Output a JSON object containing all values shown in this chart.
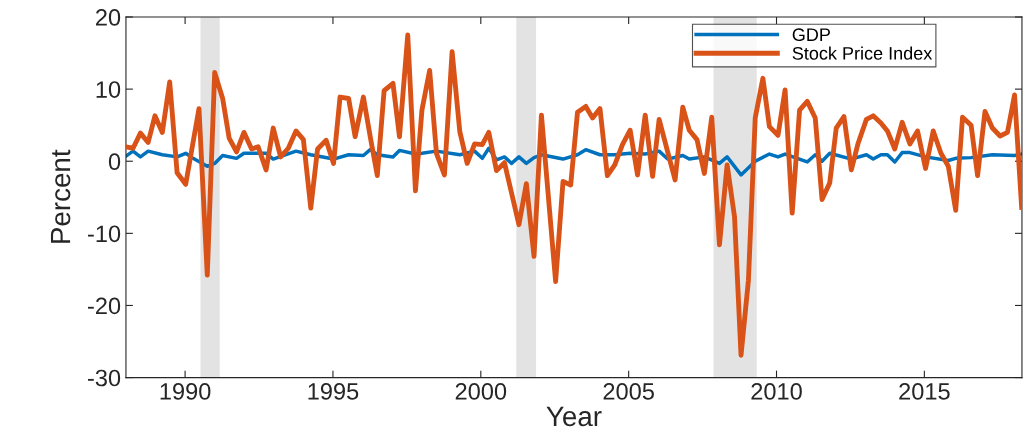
{
  "chart_data": {
    "type": "line",
    "xlabel": "Year",
    "ylabel": "Percent",
    "xlim": [
      1988,
      2018.3
    ],
    "xticks": [
      1990,
      1995,
      2000,
      2005,
      2010,
      2015
    ],
    "ylim": [
      -30,
      20
    ],
    "yticks": [
      -30,
      -20,
      -10,
      0,
      10,
      20
    ],
    "grid": false,
    "legend": "top right",
    "line_style": "solid",
    "marker": "none",
    "bands": [
      {
        "axis": "x",
        "from": 1990.52,
        "to": 1991.17,
        "color": "#e3e3e3"
      },
      {
        "axis": "x",
        "from": 2001.2,
        "to": 2001.87,
        "color": "#e3e3e3"
      },
      {
        "axis": "x",
        "from": 2007.87,
        "to": 2009.33,
        "color": "#e3e3e3"
      }
    ],
    "series": [
      {
        "name": "GDP",
        "color": "#0072bd",
        "x": [
          1988.0,
          1988.24,
          1988.49,
          1988.75,
          1989.23,
          1989.73,
          1990.02,
          1990.27,
          1990.75,
          1991.0,
          1991.27,
          1991.74,
          1991.99,
          1992.74,
          1992.98,
          1993.75,
          1994.25,
          1995.02,
          1995.53,
          1996.03,
          1996.26,
          1996.5,
          1997.03,
          1997.25,
          1997.79,
          1998.01,
          1998.5,
          1999.29,
          1999.79,
          2000.05,
          2000.27,
          2000.53,
          2000.8,
          2001.04,
          2001.29,
          2001.54,
          2001.8,
          2002.05,
          2002.78,
          2003.27,
          2003.55,
          2004.03,
          2004.53,
          2005.05,
          2005.56,
          2006.03,
          2006.32,
          2006.83,
          2007.05,
          2007.56,
          2008.07,
          2008.33,
          2008.8,
          2009.28,
          2009.76,
          2010.05,
          2010.29,
          2011.04,
          2011.31,
          2011.54,
          2011.8,
          2012.53,
          2013.04,
          2013.27,
          2013.53,
          2013.75,
          2014.0,
          2014.25,
          2014.51,
          2015.04,
          2015.81,
          2016.06,
          2016.58,
          2017.3,
          2018.05,
          2018.29
        ],
        "values": [
          0.7,
          1.4,
          0.6,
          1.4,
          0.9,
          0.6,
          1.1,
          0.4,
          -0.7,
          -0.3,
          0.8,
          0.4,
          1.1,
          1.1,
          0.3,
          1.4,
          0.9,
          0.3,
          0.9,
          0.8,
          1.6,
          0.9,
          0.6,
          1.5,
          1.0,
          1.1,
          1.4,
          0.9,
          1.4,
          0.4,
          1.8,
          0.2,
          0.6,
          -0.3,
          0.6,
          -0.3,
          0.5,
          0.9,
          0.3,
          0.9,
          1.6,
          0.9,
          0.9,
          1.1,
          1.0,
          1.4,
          0.3,
          0.8,
          0.3,
          0.6,
          -0.3,
          0.6,
          -1.9,
          0.0,
          1.0,
          0.6,
          1.0,
          -0.1,
          0.9,
          0.0,
          1.1,
          0.3,
          0.9,
          0.3,
          0.9,
          0.9,
          -0.1,
          1.2,
          1.2,
          0.6,
          0.1,
          0.4,
          0.5,
          0.9,
          0.8,
          1.0
        ]
      },
      {
        "name": "Stock Price Index",
        "color": "#d95319",
        "x": [
          1988.0,
          1988.24,
          1988.49,
          1988.75,
          1988.98,
          1989.23,
          1989.48,
          1989.73,
          1990.02,
          1990.47,
          1990.75,
          1991.0,
          1991.27,
          1991.49,
          1991.74,
          1991.99,
          1992.25,
          1992.47,
          1992.74,
          1992.98,
          1993.23,
          1993.49,
          1993.75,
          1994.0,
          1994.25,
          1994.48,
          1994.77,
          1995.02,
          1995.24,
          1995.53,
          1995.75,
          1996.03,
          1996.26,
          1996.5,
          1996.73,
          1997.03,
          1997.25,
          1997.53,
          1997.79,
          1998.01,
          1998.27,
          1998.5,
          1998.77,
          1999.03,
          1999.29,
          1999.54,
          1999.79,
          2000.05,
          2000.27,
          2000.53,
          2000.8,
          2001.29,
          2001.54,
          2001.8,
          2002.05,
          2002.53,
          2002.78,
          2003.04,
          2003.27,
          2003.55,
          2003.78,
          2004.03,
          2004.28,
          2004.53,
          2004.79,
          2005.05,
          2005.3,
          2005.56,
          2005.81,
          2006.03,
          2006.32,
          2006.57,
          2006.83,
          2007.05,
          2007.31,
          2007.56,
          2007.81,
          2008.07,
          2008.33,
          2008.58,
          2008.8,
          2009.05,
          2009.28,
          2009.54,
          2009.76,
          2010.05,
          2010.29,
          2010.53,
          2010.78,
          2011.04,
          2011.31,
          2011.54,
          2011.8,
          2012.02,
          2012.28,
          2012.53,
          2012.76,
          2013.04,
          2013.27,
          2013.53,
          2013.75,
          2014.0,
          2014.25,
          2014.51,
          2014.77,
          2015.04,
          2015.3,
          2015.56,
          2015.81,
          2016.06,
          2016.29,
          2016.58,
          2016.8,
          2017.05,
          2017.3,
          2017.56,
          2017.81,
          2018.05,
          2018.29
        ],
        "values": [
          2.0,
          1.8,
          3.9,
          2.6,
          6.3,
          4.0,
          11.0,
          -1.6,
          -3.2,
          7.3,
          -15.8,
          12.3,
          8.7,
          3.2,
          1.3,
          4.0,
          1.7,
          2.0,
          -1.2,
          4.6,
          0.6,
          1.8,
          4.2,
          3.0,
          -6.5,
          1.7,
          2.9,
          -0.3,
          8.9,
          8.7,
          3.4,
          8.9,
          3.4,
          -2.0,
          9.8,
          10.8,
          3.4,
          17.5,
          -4.1,
          7.1,
          12.6,
          1.1,
          -1.9,
          15.2,
          4.1,
          -0.3,
          2.4,
          2.3,
          4.0,
          -1.3,
          -0.2,
          -8.8,
          -3.1,
          -13.2,
          6.4,
          -16.7,
          -2.8,
          -3.3,
          6.8,
          7.6,
          6.0,
          7.3,
          -2.0,
          -0.5,
          2.3,
          4.3,
          -1.9,
          6.4,
          -2.1,
          5.8,
          1.3,
          -2.6,
          7.5,
          4.3,
          3.0,
          -1.7,
          6.1,
          -11.6,
          -0.5,
          -7.7,
          -26.9,
          -16.5,
          6.0,
          11.5,
          4.8,
          3.6,
          9.9,
          -7.2,
          7.1,
          8.3,
          6.0,
          -5.3,
          -3.0,
          4.6,
          6.2,
          -1.2,
          2.5,
          5.8,
          6.3,
          5.3,
          4.2,
          1.7,
          5.4,
          2.4,
          4.2,
          -1.0,
          4.2,
          1.1,
          -0.7,
          -6.8,
          6.1,
          5.0,
          -2.0,
          6.9,
          4.6,
          3.5,
          4.0,
          9.2,
          -6.4
        ]
      }
    ]
  }
}
